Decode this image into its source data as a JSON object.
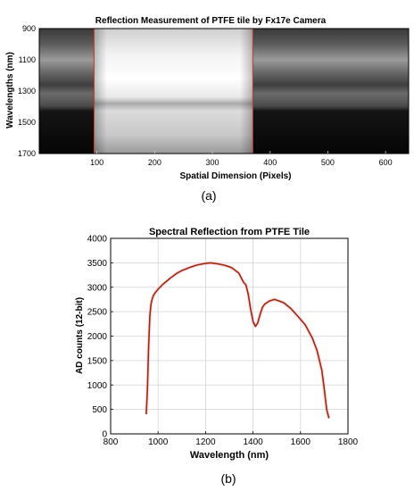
{
  "chart_data": [
    {
      "type": "heatmap",
      "title": "Reflection Measurement of PTFE tile by Fx17e Camera",
      "xlabel": "Spatial Dimension (Pixels)",
      "ylabel": "Wavelengths (nm)",
      "xlim": [
        0,
        640
      ],
      "ylim": [
        900,
        1700
      ],
      "xticks": [
        100,
        200,
        300,
        400,
        500,
        600
      ],
      "yticks": [
        900,
        1100,
        1300,
        1500,
        1700
      ],
      "tile_region": [
        95,
        370
      ],
      "markers": [
        95,
        370
      ],
      "caption": "(a)"
    },
    {
      "type": "line",
      "title": "Spectral Reflection from PTFE Tile",
      "xlabel": "Wavelength (nm)",
      "ylabel": "AD counts (12-bit)",
      "xlim": [
        800,
        1800
      ],
      "ylim": [
        0,
        4000
      ],
      "xticks": [
        800,
        1000,
        1200,
        1400,
        1600,
        1800
      ],
      "yticks": [
        0,
        500,
        1000,
        1500,
        2000,
        2500,
        3000,
        3500,
        4000
      ],
      "grid": true,
      "color": "#9c2a00",
      "x": [
        950,
        955,
        960,
        965,
        970,
        975,
        980,
        990,
        1000,
        1020,
        1050,
        1080,
        1100,
        1130,
        1160,
        1190,
        1220,
        1250,
        1280,
        1310,
        1340,
        1360,
        1370,
        1380,
        1390,
        1400,
        1410,
        1420,
        1430,
        1440,
        1450,
        1470,
        1490,
        1510,
        1530,
        1560,
        1590,
        1620,
        1650,
        1670,
        1690,
        1700,
        1710,
        1720
      ],
      "y": [
        400,
        900,
        1800,
        2400,
        2650,
        2760,
        2830,
        2900,
        2960,
        3060,
        3180,
        3290,
        3340,
        3400,
        3450,
        3480,
        3500,
        3480,
        3450,
        3400,
        3290,
        3100,
        3050,
        2850,
        2550,
        2300,
        2200,
        2270,
        2450,
        2590,
        2660,
        2720,
        2750,
        2720,
        2680,
        2560,
        2400,
        2230,
        1960,
        1700,
        1300,
        920,
        500,
        320
      ],
      "caption": "(b)"
    }
  ]
}
